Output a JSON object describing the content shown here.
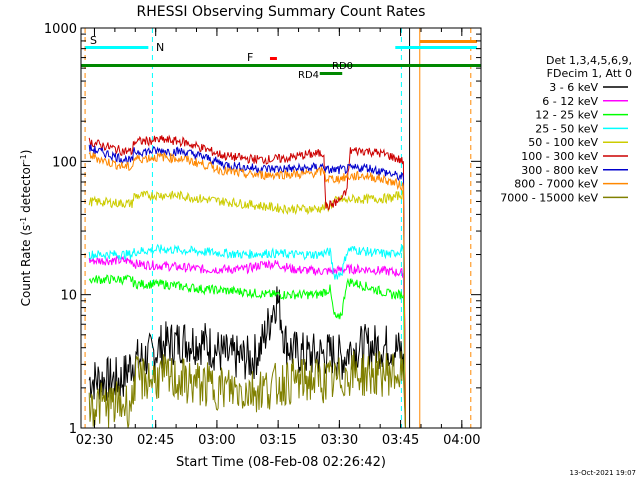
{
  "chart_data": {
    "type": "line",
    "title": "RHESSI Observing Summary Count Rates",
    "xlabel": "Start Time (08-Feb-08 02:26:42)",
    "ylabel": "Count Rate (s",
    "ylabel_sup": "-1",
    "ylabel_rest": " detector",
    "ylabel_end": ")",
    "x_unit": "minutes since 02:26:42",
    "xlim": [
      0,
      98
    ],
    "ylim": [
      1,
      1000
    ],
    "y_scale": "log",
    "grid": false,
    "x_ticks": [
      {
        "t": 3.3,
        "label": "02:30"
      },
      {
        "t": 18.3,
        "label": "02:45"
      },
      {
        "t": 33.3,
        "label": "03:00"
      },
      {
        "t": 48.3,
        "label": "03:15"
      },
      {
        "t": 63.3,
        "label": "03:30"
      },
      {
        "t": 78.3,
        "label": "03:45"
      },
      {
        "t": 93.3,
        "label": "04:00"
      }
    ],
    "y_ticks": [
      {
        "v": 1,
        "label": "1"
      },
      {
        "v": 10,
        "label": "10"
      },
      {
        "v": 100,
        "label": "100"
      },
      {
        "v": 1000,
        "label": "1000"
      }
    ],
    "legend": {
      "placement": "right",
      "header1": "Det 1,3,4,5,6,9,",
      "header2": "FDecim 1, Att 0"
    },
    "series": [
      {
        "name": "3 - 6 keV",
        "color": "#000000",
        "t": [
          2,
          10,
          12.5,
          17,
          20,
          25,
          30,
          36,
          42,
          44,
          46,
          47,
          48,
          49,
          50,
          52,
          56,
          62,
          64,
          66,
          68,
          72,
          76,
          79,
          79.5
        ],
        "v": [
          2.3,
          2.3,
          3.1,
          3.5,
          4.2,
          4.5,
          4.4,
          3.4,
          3.3,
          4.0,
          6.0,
          8.0,
          9.5,
          7.0,
          4.5,
          3.7,
          3.5,
          3.6,
          3.3,
          3.9,
          4.0,
          4.1,
          4.1,
          3.6,
          1.0
        ]
      },
      {
        "name": "6 - 12 keV",
        "color": "#ff00ff",
        "t": [
          2,
          12.5,
          13,
          20,
          30,
          40,
          45,
          48,
          52,
          58,
          62,
          64,
          66,
          70,
          75,
          79,
          79.5
        ],
        "v": [
          18,
          18,
          17,
          16.5,
          15.5,
          15.5,
          17,
          17,
          15.5,
          15,
          15,
          15.5,
          15.5,
          15.5,
          15,
          14.5,
          1.0
        ]
      },
      {
        "name": "12 - 25 keV",
        "color": "#00ff00",
        "t": [
          2,
          12.5,
          13,
          20,
          30,
          40,
          46,
          52,
          58,
          61,
          62,
          63,
          64,
          65,
          66,
          70,
          76,
          79,
          79.5
        ],
        "v": [
          13,
          13,
          12,
          12,
          11,
          10.5,
          10,
          10,
          10,
          11,
          7,
          6.5,
          7.5,
          12,
          12.5,
          11.5,
          10,
          10,
          1.0
        ]
      },
      {
        "name": "25 - 50 keV",
        "color": "#00ffff",
        "t": [
          2,
          12.5,
          13,
          20,
          30,
          40,
          46,
          52,
          58,
          61,
          62,
          63,
          64,
          65,
          66,
          70,
          76,
          79,
          79.5
        ],
        "v": [
          20,
          20,
          21,
          22,
          21,
          20,
          20.5,
          20,
          20,
          21,
          14,
          14,
          15,
          20.5,
          22,
          21,
          20,
          22,
          1.0
        ]
      },
      {
        "name": "50 - 100 keV",
        "color": "#cccc00",
        "t": [
          2,
          12.5,
          13,
          20,
          25,
          30,
          40,
          50,
          58,
          61,
          62,
          63,
          64,
          65,
          66,
          70,
          76,
          79,
          79.5
        ],
        "v": [
          50,
          48,
          55,
          56,
          55,
          52,
          48,
          44,
          44,
          46,
          50,
          51,
          52,
          50,
          52,
          52,
          53,
          57,
          1.0
        ]
      },
      {
        "name": "100 - 300 keV",
        "color": "#cc0000",
        "t": [
          2,
          6,
          10,
          12.5,
          13,
          20,
          25,
          30,
          35,
          40,
          45,
          50,
          55,
          59.5,
          60,
          61,
          63,
          65,
          66,
          70,
          75,
          79,
          79.5
        ],
        "v": [
          140,
          130,
          120,
          118,
          140,
          145,
          140,
          125,
          110,
          105,
          103,
          105,
          112,
          115,
          45,
          47,
          50,
          58,
          120,
          120,
          112,
          100,
          1.0
        ]
      },
      {
        "name": "300 - 800 keV",
        "color": "#0000cc",
        "t": [
          2,
          6,
          10,
          12.5,
          13,
          20,
          25,
          30,
          35,
          40,
          45,
          50,
          55,
          59.5,
          60,
          63,
          65,
          66,
          70,
          75,
          79,
          79.5
        ],
        "v": [
          125,
          115,
          105,
          100,
          118,
          120,
          118,
          108,
          95,
          90,
          88,
          88,
          88,
          92,
          86,
          86,
          87,
          88,
          90,
          82,
          75,
          1.0
        ]
      },
      {
        "name": "800 - 7000 keV",
        "color": "#ff8800",
        "t": [
          2,
          6,
          10,
          12.5,
          13,
          20,
          25,
          30,
          35,
          40,
          45,
          50,
          55,
          59.5,
          60,
          63,
          65,
          66,
          70,
          75,
          79,
          79.5
        ],
        "v": [
          112,
          100,
          92,
          90,
          104,
          108,
          104,
          95,
          85,
          80,
          79,
          80,
          80,
          84,
          74,
          74,
          76,
          77,
          78,
          72,
          65,
          1.0
        ]
      },
      {
        "name": "7000 - 15000 keV",
        "color": "#808000",
        "t": [
          2,
          12.5,
          13,
          20,
          30,
          40,
          46,
          50,
          58,
          62,
          66,
          70,
          76,
          79,
          79.5
        ],
        "v": [
          1.5,
          1.5,
          2.3,
          2.4,
          2.1,
          1.9,
          2.0,
          2.2,
          2.3,
          2.2,
          2.6,
          2.5,
          2.6,
          2.5,
          1.0
        ]
      }
    ],
    "annotations": {
      "saa_label": "S",
      "night_label": "N",
      "flare_label": "F",
      "rd0_label": "RD0",
      "rd4_label": "RD4",
      "saa_color": "#ff8800",
      "night_color": "#00ffff",
      "flare_color": "#ff0000",
      "rd_color": "#008800",
      "night_bars": [
        [
          1.0,
          16.5
        ],
        [
          77.0,
          97.0
        ]
      ],
      "night_vlines": [
        17.5,
        78.5
      ],
      "saa_vlines": [
        80.5,
        83.0,
        95.5
      ],
      "saa_bar": [
        83.0,
        97.0
      ],
      "flare_bar": [
        46.3,
        48.0
      ],
      "rd0_bar": [
        60.0,
        66.0
      ],
      "rd4_bar": [
        58.5,
        64.0
      ],
      "decim_line": [
        0.0,
        98.0
      ]
    }
  },
  "footer": {
    "timestamp": "13-Oct-2021 19:07"
  }
}
